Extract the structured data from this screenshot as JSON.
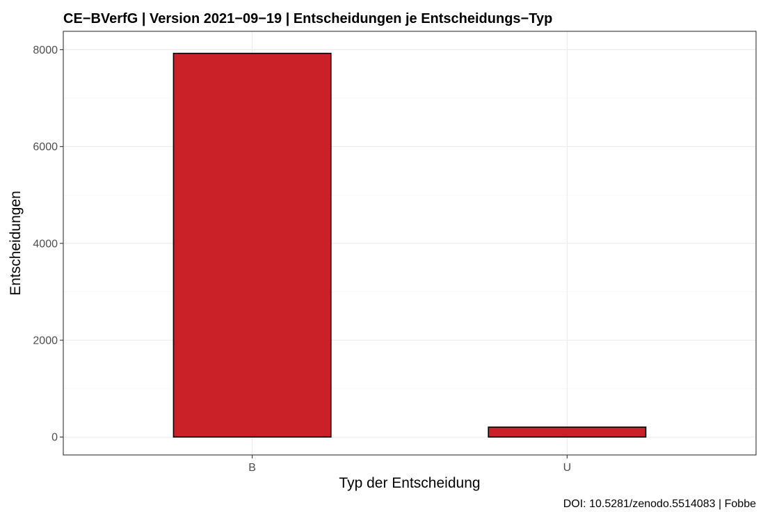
{
  "chart_data": {
    "type": "bar",
    "title": "CE−BVerfG | Version 2021−09−19 | Entscheidungen je Entscheidungs−Typ",
    "xlabel": "Typ der Entscheidung",
    "ylabel": "Entscheidungen",
    "categories": [
      "B",
      "U"
    ],
    "values": [
      7925,
      205
    ],
    "ylim": [
      -370,
      8380
    ],
    "yticks": [
      0,
      2000,
      4000,
      6000,
      8000
    ],
    "ytick_labels": [
      "0",
      "2000",
      "4000",
      "6000",
      "8000"
    ],
    "caption": "DOI: 10.5281/zenodo.5514083 | Fobbe",
    "grid": true,
    "legend": "none",
    "bar_color": "#ca2129",
    "bar_edge_color": "#000000"
  }
}
